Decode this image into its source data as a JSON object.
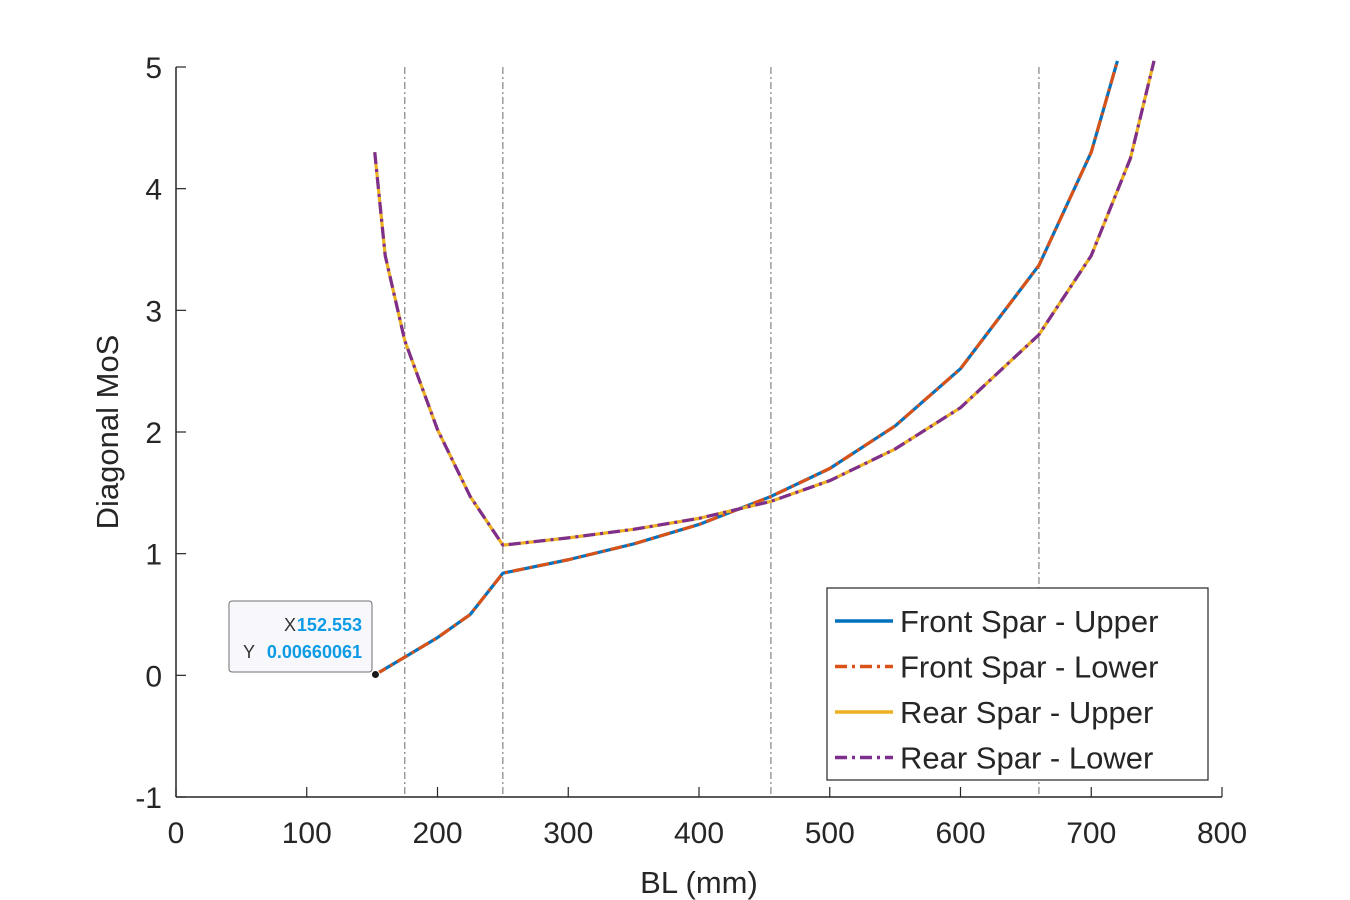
{
  "chart_data": {
    "type": "line",
    "xlabel": "BL (mm)",
    "ylabel": "Diagonal MoS",
    "xlim": [
      0,
      800
    ],
    "ylim": [
      -1,
      5
    ],
    "xticks": [
      0,
      100,
      200,
      300,
      400,
      500,
      600,
      700,
      800
    ],
    "yticks": [
      -1,
      0,
      1,
      2,
      3,
      4,
      5
    ],
    "grid": false,
    "legend_position": "bottom-right",
    "vertical_reference_lines": [
      175,
      250,
      455,
      660
    ],
    "series": [
      {
        "name": "Front Spar - Upper",
        "color": "#0072BD",
        "style": "solid",
        "points": [
          [
            152.553,
            0.0066
          ],
          [
            175,
            0.15
          ],
          [
            200,
            0.31
          ],
          [
            225,
            0.5
          ],
          [
            250,
            0.84
          ],
          [
            300,
            0.95
          ],
          [
            350,
            1.08
          ],
          [
            400,
            1.24
          ],
          [
            455,
            1.47
          ],
          [
            500,
            1.7
          ],
          [
            550,
            2.05
          ],
          [
            600,
            2.52
          ],
          [
            660,
            3.37
          ],
          [
            700,
            4.3
          ],
          [
            720,
            5.05
          ]
        ]
      },
      {
        "name": "Front Spar - Lower",
        "color": "#D95319",
        "style": "dash-dot",
        "points": [
          [
            152.553,
            0.0066
          ],
          [
            175,
            0.15
          ],
          [
            200,
            0.31
          ],
          [
            225,
            0.5
          ],
          [
            250,
            0.84
          ],
          [
            300,
            0.95
          ],
          [
            350,
            1.08
          ],
          [
            400,
            1.24
          ],
          [
            455,
            1.47
          ],
          [
            500,
            1.7
          ],
          [
            550,
            2.05
          ],
          [
            600,
            2.52
          ],
          [
            660,
            3.37
          ],
          [
            700,
            4.3
          ],
          [
            720,
            5.05
          ]
        ]
      },
      {
        "name": "Rear Spar - Upper",
        "color": "#EDB120",
        "style": "solid",
        "points": [
          [
            152,
            4.3
          ],
          [
            160,
            3.45
          ],
          [
            175,
            2.75
          ],
          [
            200,
            2.02
          ],
          [
            225,
            1.47
          ],
          [
            250,
            1.07
          ],
          [
            300,
            1.13
          ],
          [
            350,
            1.2
          ],
          [
            400,
            1.29
          ],
          [
            455,
            1.43
          ],
          [
            500,
            1.6
          ],
          [
            550,
            1.86
          ],
          [
            600,
            2.2
          ],
          [
            660,
            2.8
          ],
          [
            700,
            3.45
          ],
          [
            730,
            4.25
          ],
          [
            748,
            5.05
          ]
        ]
      },
      {
        "name": "Rear Spar - Lower",
        "color": "#7E2F8E",
        "style": "dash-dot",
        "points": [
          [
            152,
            4.3
          ],
          [
            160,
            3.45
          ],
          [
            175,
            2.75
          ],
          [
            200,
            2.02
          ],
          [
            225,
            1.47
          ],
          [
            250,
            1.07
          ],
          [
            300,
            1.13
          ],
          [
            350,
            1.2
          ],
          [
            400,
            1.29
          ],
          [
            455,
            1.43
          ],
          [
            500,
            1.6
          ],
          [
            550,
            1.86
          ],
          [
            600,
            2.2
          ],
          [
            660,
            2.8
          ],
          [
            700,
            3.45
          ],
          [
            730,
            4.25
          ],
          [
            748,
            5.05
          ]
        ]
      }
    ],
    "datatip": {
      "x_key": "X",
      "y_key": "Y",
      "x_value_text": "152.553",
      "y_value_text": "0.00660061",
      "x": 152.553,
      "y": 0.0066
    }
  }
}
